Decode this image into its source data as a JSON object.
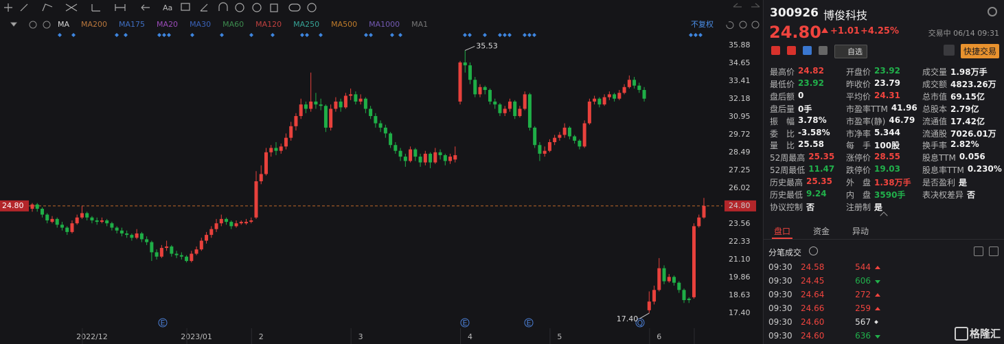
{
  "chart_data": {
    "type": "candlestick",
    "ma_legend": [
      {
        "name": "MA",
        "color": "#d8d8d8"
      },
      {
        "name": "MA200",
        "color": "#b9773c"
      },
      {
        "name": "MA175",
        "color": "#3f6fc2"
      },
      {
        "name": "MA20",
        "color": "#9a4bb8"
      },
      {
        "name": "MA30",
        "color": "#3a62b8"
      },
      {
        "name": "MA60",
        "color": "#3d8c4f"
      },
      {
        "name": "MA120",
        "color": "#c0403f"
      },
      {
        "name": "MA250",
        "color": "#36a396"
      },
      {
        "name": "MA500",
        "color": "#c07c2a"
      },
      {
        "name": "MA1000",
        "color": "#7359b3"
      },
      {
        "name": "MA1",
        "color": "#777777"
      }
    ],
    "adjust_label": "不复权",
    "toolbar_text": "Aa",
    "event_markers": [
      "E",
      "E",
      "E",
      "Q"
    ],
    "up_color": "#e8413c",
    "down_color": "#1fae47",
    "ylim": [
      16.74,
      36.26
    ],
    "yticks": [
      35.88,
      34.65,
      33.41,
      32.18,
      30.95,
      29.72,
      28.49,
      27.25,
      26.02,
      {
        "value": 24.8,
        "label": "24.80"
      },
      23.56,
      22.33,
      {
        "value": 21.1,
        "label": "21.10"
      },
      19.86,
      18.63,
      {
        "value": 17.4,
        "label": "17.40"
      }
    ],
    "grid": false,
    "high_label": 35.53,
    "low_label": {
      "value": 17.4,
      "label": "17.40"
    },
    "categories": [
      null,
      null,
      null,
      null,
      null,
      null,
      null,
      null,
      null,
      null,
      null,
      null,
      "2022/12",
      null,
      null,
      null,
      null,
      null,
      null,
      null,
      null,
      null,
      null,
      null,
      null,
      null,
      null,
      null,
      null,
      null,
      null,
      null,
      null,
      "2023/01",
      null,
      null,
      null,
      null,
      null,
      null,
      null,
      null,
      null,
      null,
      null,
      null,
      "2",
      null,
      null,
      null,
      null,
      null,
      null,
      null,
      null,
      null,
      null,
      null,
      null,
      null,
      null,
      null,
      null,
      null,
      null,
      null,
      "3",
      null,
      null,
      null,
      null,
      null,
      null,
      null,
      null,
      null,
      null,
      null,
      null,
      null,
      null,
      null,
      null,
      null,
      null,
      null,
      null,
      null,
      "4",
      null,
      null,
      null,
      null,
      null,
      null,
      null,
      null,
      null,
      null,
      null,
      null,
      null,
      null,
      null,
      null,
      null,
      "5",
      null,
      null,
      null,
      null,
      null,
      null,
      null,
      null,
      null,
      null,
      null,
      null,
      null,
      null,
      null,
      null,
      null,
      null,
      null,
      "6",
      null,
      null,
      null,
      null,
      null,
      null,
      null,
      null
    ],
    "candles": [
      [
        24.6,
        25.0,
        24.4,
        24.9
      ],
      [
        24.9,
        25.0,
        24.4,
        24.6
      ],
      [
        24.6,
        24.7,
        24.0,
        24.2
      ],
      [
        24.2,
        24.3,
        23.6,
        23.8
      ],
      [
        23.7,
        24.1,
        23.6,
        23.9
      ],
      [
        23.9,
        24.0,
        23.3,
        23.5
      ],
      [
        23.5,
        23.7,
        23.1,
        23.3
      ],
      [
        23.3,
        23.4,
        22.8,
        23.0
      ],
      [
        23.0,
        23.8,
        22.9,
        23.6
      ],
      [
        23.6,
        24.2,
        23.5,
        24.0
      ],
      [
        24.0,
        24.8,
        23.9,
        24.3
      ],
      [
        24.3,
        24.4,
        23.8,
        24.0
      ],
      [
        24.0,
        24.1,
        23.6,
        23.8
      ],
      [
        23.8,
        24.0,
        23.5,
        23.7
      ],
      [
        23.7,
        24.0,
        23.6,
        23.8
      ],
      [
        23.8,
        23.9,
        23.4,
        23.6
      ],
      [
        23.6,
        23.7,
        23.1,
        23.3
      ],
      [
        23.3,
        23.4,
        22.9,
        23.1
      ],
      [
        23.1,
        23.3,
        22.7,
        22.9
      ],
      [
        22.9,
        23.1,
        22.6,
        22.8
      ],
      [
        22.8,
        22.9,
        22.4,
        22.6
      ],
      [
        22.6,
        23.2,
        22.5,
        22.9
      ],
      [
        22.9,
        23.0,
        22.3,
        22.5
      ],
      [
        22.5,
        22.7,
        22.1,
        22.3
      ],
      [
        22.3,
        22.4,
        21.0,
        21.6
      ],
      [
        21.6,
        21.8,
        21.1,
        21.3
      ],
      [
        21.3,
        22.1,
        21.2,
        21.9
      ],
      [
        21.9,
        22.4,
        21.7,
        22.0
      ],
      [
        22.0,
        22.1,
        21.3,
        21.5
      ],
      [
        21.5,
        21.7,
        21.2,
        21.4
      ],
      [
        21.4,
        21.6,
        21.1,
        21.3
      ],
      [
        21.3,
        21.4,
        20.9,
        21.0
      ],
      [
        21.0,
        21.7,
        20.9,
        21.5
      ],
      [
        21.5,
        22.0,
        21.4,
        21.8
      ],
      [
        21.8,
        22.6,
        21.7,
        22.4
      ],
      [
        22.4,
        23.0,
        22.2,
        22.8
      ],
      [
        22.8,
        23.4,
        22.6,
        23.2
      ],
      [
        23.2,
        23.9,
        23.0,
        23.6
      ],
      [
        23.6,
        24.2,
        23.4,
        23.9
      ],
      [
        23.9,
        24.0,
        23.5,
        23.7
      ],
      [
        23.7,
        23.8,
        23.2,
        23.4
      ],
      [
        23.4,
        23.8,
        23.3,
        23.6
      ],
      [
        23.6,
        23.8,
        23.5,
        23.7
      ],
      [
        23.6,
        23.9,
        23.5,
        23.7
      ],
      [
        23.7,
        24.0,
        23.6,
        23.8
      ],
      [
        24.0,
        27.2,
        23.9,
        26.5
      ],
      [
        26.5,
        27.6,
        26.3,
        27.0
      ],
      [
        27.0,
        28.8,
        26.9,
        28.5
      ],
      [
        28.5,
        29.0,
        28.2,
        28.8
      ],
      [
        28.8,
        29.2,
        28.3,
        28.6
      ],
      [
        28.6,
        29.1,
        28.4,
        28.9
      ],
      [
        28.9,
        29.8,
        28.7,
        29.5
      ],
      [
        29.5,
        30.6,
        29.3,
        30.3
      ],
      [
        30.3,
        31.2,
        30.0,
        31.0
      ],
      [
        31.0,
        32.2,
        30.8,
        31.8
      ],
      [
        31.8,
        32.0,
        31.2,
        31.5
      ],
      [
        31.5,
        34.0,
        31.3,
        32.0
      ],
      [
        32.0,
        32.6,
        31.5,
        31.8
      ],
      [
        31.8,
        32.2,
        31.4,
        31.7
      ],
      [
        31.7,
        31.8,
        29.9,
        30.2
      ],
      [
        30.2,
        31.8,
        30.0,
        31.5
      ],
      [
        31.5,
        32.3,
        31.3,
        32.0
      ],
      [
        32.0,
        32.2,
        31.3,
        31.6
      ],
      [
        31.6,
        32.6,
        31.5,
        32.4
      ],
      [
        32.4,
        32.9,
        32.1,
        32.5
      ],
      [
        32.5,
        32.7,
        31.8,
        32.0
      ],
      [
        32.0,
        32.5,
        31.8,
        32.2
      ],
      [
        32.2,
        32.3,
        31.2,
        31.5
      ],
      [
        31.5,
        31.7,
        30.8,
        31.0
      ],
      [
        31.0,
        31.2,
        30.2,
        30.5
      ],
      [
        30.5,
        30.7,
        29.9,
        30.2
      ],
      [
        30.2,
        30.4,
        29.5,
        29.8
      ],
      [
        29.8,
        29.9,
        28.8,
        29.0
      ],
      [
        29.0,
        29.2,
        28.4,
        28.6
      ],
      [
        28.6,
        28.8,
        27.9,
        28.2
      ],
      [
        28.2,
        28.4,
        27.5,
        27.9
      ],
      [
        27.9,
        28.9,
        27.8,
        28.7
      ],
      [
        28.7,
        28.8,
        27.9,
        28.2
      ],
      [
        28.2,
        28.4,
        27.5,
        27.8
      ],
      [
        27.8,
        28.6,
        27.6,
        28.4
      ],
      [
        28.4,
        28.5,
        27.4,
        27.8
      ],
      [
        27.8,
        28.8,
        27.7,
        28.5
      ],
      [
        28.5,
        28.7,
        28.0,
        28.3
      ],
      [
        28.3,
        28.4,
        27.6,
        27.9
      ],
      [
        27.9,
        28.4,
        27.7,
        28.2
      ],
      [
        28.0,
        28.9,
        27.8,
        28.3
      ],
      [
        32.0,
        34.8,
        31.8,
        34.7
      ],
      [
        34.7,
        35.53,
        34.0,
        34.5
      ],
      [
        34.5,
        34.7,
        33.2,
        33.5
      ],
      [
        33.5,
        33.7,
        32.3,
        32.5
      ],
      [
        32.5,
        33.2,
        32.3,
        33.0
      ],
      [
        33.0,
        33.1,
        32.5,
        32.8
      ],
      [
        32.8,
        32.9,
        31.8,
        32.0
      ],
      [
        32.0,
        32.2,
        31.5,
        31.8
      ],
      [
        31.8,
        31.9,
        31.0,
        31.2
      ],
      [
        31.2,
        31.7,
        31.0,
        31.5
      ],
      [
        31.5,
        32.2,
        31.3,
        32.0
      ],
      [
        32.0,
        32.1,
        30.8,
        31.0
      ],
      [
        31.0,
        31.7,
        30.9,
        31.5
      ],
      [
        31.5,
        32.7,
        31.4,
        32.5
      ],
      [
        32.5,
        32.6,
        30.0,
        30.2
      ],
      [
        30.2,
        30.3,
        28.8,
        29.0
      ],
      [
        29.0,
        29.2,
        27.9,
        28.4
      ],
      [
        28.4,
        28.9,
        28.2,
        28.6
      ],
      [
        28.6,
        29.4,
        28.5,
        29.2
      ],
      [
        29.2,
        29.7,
        29.0,
        29.5
      ],
      [
        29.5,
        29.9,
        29.3,
        29.7
      ],
      [
        29.7,
        30.5,
        29.5,
        30.2
      ],
      [
        30.2,
        30.3,
        29.4,
        29.6
      ],
      [
        29.6,
        29.7,
        29.1,
        29.3
      ],
      [
        29.3,
        29.4,
        28.7,
        28.9
      ],
      [
        28.9,
        30.7,
        28.8,
        30.5
      ],
      [
        30.5,
        32.2,
        30.4,
        32.0
      ],
      [
        32.0,
        32.4,
        31.8,
        32.2
      ],
      [
        32.2,
        32.3,
        31.6,
        31.8
      ],
      [
        31.8,
        32.5,
        31.7,
        32.3
      ],
      [
        32.3,
        32.7,
        32.1,
        32.5
      ],
      [
        32.5,
        32.6,
        32.0,
        32.2
      ],
      [
        32.2,
        32.8,
        32.1,
        32.6
      ],
      [
        32.6,
        33.2,
        32.5,
        33.0
      ],
      [
        33.0,
        33.8,
        32.9,
        33.5
      ],
      [
        33.5,
        33.7,
        32.9,
        33.1
      ],
      [
        33.1,
        33.3,
        32.6,
        32.8
      ],
      [
        32.8,
        33.0,
        32.0,
        32.2
      ],
      [
        17.6,
        18.9,
        17.4,
        18.2
      ],
      [
        18.2,
        19.3,
        18.0,
        19.0
      ],
      [
        19.0,
        21.2,
        18.9,
        20.5
      ],
      [
        20.5,
        20.7,
        19.4,
        19.6
      ],
      [
        19.6,
        20.1,
        19.5,
        19.9
      ],
      [
        19.9,
        20.0,
        19.3,
        19.5
      ],
      [
        19.5,
        19.6,
        18.8,
        19.0
      ],
      [
        19.0,
        19.1,
        18.1,
        18.3
      ],
      [
        18.4,
        18.5,
        18.1,
        18.3
      ],
      [
        18.5,
        23.6,
        18.4,
        23.4
      ],
      [
        23.4,
        24.2,
        23.3,
        24.0
      ],
      [
        24.0,
        25.35,
        23.92,
        24.8
      ]
    ]
  },
  "quote": {
    "code": "300926",
    "name": "博俊科技",
    "price": "24.80",
    "change": "+1.01",
    "change_pct": "+4.25%",
    "status": "交易中 06/14 09:31",
    "watch": "自选",
    "quick_trade": "快捷交易",
    "up_color": "#f0443e",
    "down_color": "#21b04b",
    "stats": [
      [
        {
          "label": "最高价",
          "value": "24.82",
          "color": "#f0443e"
        },
        {
          "label": "开盘价",
          "value": "23.92",
          "color": "#21b04b"
        },
        {
          "label": "成交量",
          "value": "1.98万手"
        }
      ],
      [
        {
          "label": "最低价",
          "value": "23.92",
          "color": "#21b04b"
        },
        {
          "label": "昨收价",
          "value": "23.79"
        },
        {
          "label": "成交额",
          "value": "4823.26万"
        }
      ],
      [
        {
          "label": "盘后额",
          "value": "0"
        },
        {
          "label": "平均价",
          "value": "24.31",
          "color": "#f0443e"
        },
        {
          "label": "总市值",
          "value": "69.15亿"
        }
      ],
      [
        {
          "label": "盘后量",
          "value": "0手"
        },
        {
          "label": "市盈率TTM",
          "value": "41.96"
        },
        {
          "label": "总股本",
          "value": "2.79亿"
        }
      ],
      [
        {
          "label": "振　幅",
          "value": "3.78%"
        },
        {
          "label": "市盈率(静)",
          "value": "46.79"
        },
        {
          "label": "流通值",
          "value": "17.42亿"
        }
      ],
      [
        {
          "label": "委　比",
          "value": "-3.58%"
        },
        {
          "label": "市净率",
          "value": "5.344"
        },
        {
          "label": "流通股",
          "value": "7026.01万"
        }
      ],
      [
        {
          "label": "量　比",
          "value": "25.58"
        },
        {
          "label": "每　手",
          "value": "100股"
        },
        {
          "label": "换手率",
          "value": "2.82%"
        }
      ],
      [
        {
          "label": "52周最高",
          "value": "25.35",
          "color": "#f0443e"
        },
        {
          "label": "涨停价",
          "value": "28.55",
          "color": "#f0443e"
        },
        {
          "label": "股息TTM",
          "value": "0.056"
        }
      ],
      [
        {
          "label": "52周最低",
          "value": "11.47",
          "color": "#21b04b"
        },
        {
          "label": "跌停价",
          "value": "19.03",
          "color": "#21b04b"
        },
        {
          "label": "股息率TTM",
          "value": "0.230%"
        }
      ],
      [
        {
          "label": "历史最高",
          "value": "25.35",
          "color": "#f0443e"
        },
        {
          "label": "外　盘",
          "value": "1.38万手",
          "color": "#f0443e"
        },
        {
          "label": "是否盈利",
          "value": "是"
        }
      ],
      [
        {
          "label": "历史最低",
          "value": "9.24",
          "color": "#21b04b"
        },
        {
          "label": "内　盘",
          "value": "3590手",
          "color": "#21b04b"
        },
        {
          "label": "表决权差异",
          "value": "否"
        }
      ],
      [
        {
          "label": "协议控制",
          "value": "否"
        },
        {
          "label": "注册制",
          "value": "是"
        }
      ]
    ],
    "tabs": [
      "盘口",
      "资金",
      "异动"
    ],
    "trades_title": "分笔成交",
    "trades": [
      {
        "time": "09:30",
        "price": "24.58",
        "volume": "544",
        "direction": "up"
      },
      {
        "time": "09:30",
        "price": "24.45",
        "volume": "606",
        "direction": "down"
      },
      {
        "time": "09:30",
        "price": "24.64",
        "volume": "272",
        "direction": "up"
      },
      {
        "time": "09:30",
        "price": "24.66",
        "volume": "259",
        "direction": "up"
      },
      {
        "time": "09:30",
        "price": "24.60",
        "volume": "567",
        "direction": "flat"
      },
      {
        "time": "09:30",
        "price": "24.60",
        "volume": "636",
        "direction": "down"
      }
    ],
    "watermark": "格隆汇"
  }
}
